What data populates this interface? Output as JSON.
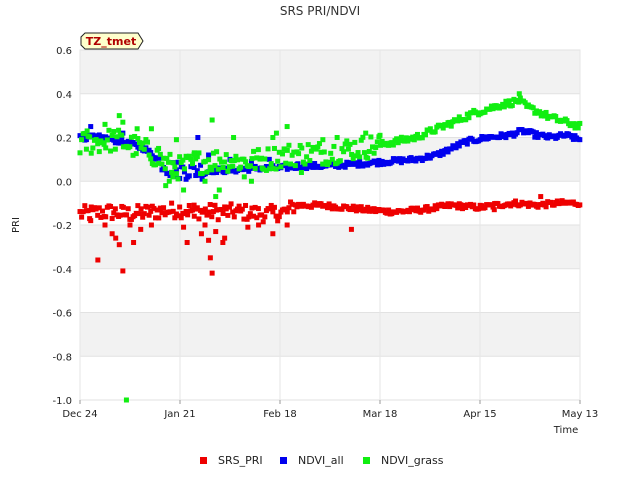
{
  "chart_data": {
    "type": "scatter",
    "title": "SRS PRI/NDVI",
    "xlabel": "Time",
    "ylabel": "PRI",
    "badge": "TZ_tmet",
    "x_start_day": 0,
    "x_end_day": 140,
    "xticks": [
      {
        "label": "Dec 24",
        "day": 0
      },
      {
        "label": "Jan 21",
        "day": 28
      },
      {
        "label": "Feb 18",
        "day": 56
      },
      {
        "label": "Mar 18",
        "day": 84
      },
      {
        "label": "Apr 15",
        "day": 112
      },
      {
        "label": "May 13",
        "day": 140
      }
    ],
    "ylim": [
      -1.0,
      0.6
    ],
    "yticks": [
      {
        "label": "0.6",
        "value": 0.6
      },
      {
        "label": "0.4",
        "value": 0.4
      },
      {
        "label": "0.2",
        "value": 0.2
      },
      {
        "label": "0.0",
        "value": 0.0
      },
      {
        "label": "-0.2",
        "value": -0.2
      },
      {
        "label": "-0.4",
        "value": -0.4
      },
      {
        "label": "-0.6",
        "value": -0.6
      },
      {
        "label": "-0.8",
        "value": -0.8
      },
      {
        "label": "-1.0",
        "value": -1.0
      }
    ],
    "series": [
      {
        "name": "SRS_PRI",
        "color": "#ee0000",
        "trend": [
          [
            0,
            -0.15
          ],
          [
            8,
            -0.14
          ],
          [
            14,
            -0.15
          ],
          [
            20,
            -0.14
          ],
          [
            28,
            -0.13
          ],
          [
            36,
            -0.14
          ],
          [
            44,
            -0.14
          ],
          [
            52,
            -0.15
          ],
          [
            58,
            -0.14
          ],
          [
            60,
            -0.11
          ],
          [
            68,
            -0.11
          ],
          [
            74,
            -0.12
          ],
          [
            80,
            -0.13
          ],
          [
            88,
            -0.14
          ],
          [
            96,
            -0.13
          ],
          [
            104,
            -0.11
          ],
          [
            112,
            -0.12
          ],
          [
            116,
            -0.11
          ],
          [
            122,
            -0.1
          ],
          [
            128,
            -0.11
          ],
          [
            134,
            -0.1
          ],
          [
            140,
            -0.1
          ]
        ],
        "jitter": 0.012,
        "scatter_start": 0,
        "scatter_end": 60,
        "scatter_extra": 0.025,
        "outliers": [
          [
            3,
            -0.18
          ],
          [
            5,
            -0.36
          ],
          [
            7,
            -0.2
          ],
          [
            9,
            -0.24
          ],
          [
            10,
            -0.26
          ],
          [
            11,
            -0.29
          ],
          [
            12,
            -0.41
          ],
          [
            14,
            -0.2
          ],
          [
            15,
            -0.28
          ],
          [
            17,
            -0.22
          ],
          [
            20,
            -0.2
          ],
          [
            29,
            -0.21
          ],
          [
            30,
            -0.28
          ],
          [
            32,
            -0.16
          ],
          [
            34,
            -0.24
          ],
          [
            35,
            -0.2
          ],
          [
            36,
            -0.27
          ],
          [
            36.5,
            -0.35
          ],
          [
            37,
            -0.42
          ],
          [
            38,
            -0.23
          ],
          [
            40,
            -0.28
          ],
          [
            40.5,
            -0.26
          ],
          [
            47,
            -0.21
          ],
          [
            50,
            -0.2
          ],
          [
            54,
            -0.24
          ],
          [
            58,
            -0.2
          ],
          [
            76,
            -0.22
          ],
          [
            116,
            -0.13
          ],
          [
            129,
            -0.07
          ]
        ]
      },
      {
        "name": "NDVI_all",
        "color": "#0000ee",
        "trend": [
          [
            0,
            0.2
          ],
          [
            6,
            0.2
          ],
          [
            12,
            0.18
          ],
          [
            18,
            0.15
          ],
          [
            22,
            0.1
          ],
          [
            25,
            0.06
          ],
          [
            28,
            0.05
          ],
          [
            34,
            0.05
          ],
          [
            42,
            0.05
          ],
          [
            50,
            0.06
          ],
          [
            56,
            0.06
          ],
          [
            62,
            0.07
          ],
          [
            70,
            0.07
          ],
          [
            78,
            0.08
          ],
          [
            86,
            0.09
          ],
          [
            94,
            0.1
          ],
          [
            100,
            0.12
          ],
          [
            104,
            0.15
          ],
          [
            108,
            0.18
          ],
          [
            114,
            0.2
          ],
          [
            120,
            0.21
          ],
          [
            124,
            0.23
          ],
          [
            128,
            0.21
          ],
          [
            132,
            0.2
          ],
          [
            136,
            0.21
          ],
          [
            140,
            0.19
          ]
        ],
        "jitter": 0.012,
        "scatter_start": 22,
        "scatter_end": 36,
        "scatter_extra": 0.03,
        "outliers": [
          [
            3,
            0.25
          ],
          [
            12,
            0.22
          ],
          [
            14,
            0.18
          ],
          [
            33,
            0.2
          ],
          [
            36,
            0.12
          ],
          [
            42,
            0.1
          ],
          [
            48,
            0.09
          ],
          [
            53,
            0.1
          ],
          [
            61,
            0.08
          ]
        ]
      },
      {
        "name": "NDVI_grass",
        "color": "#11ee11",
        "trend": [
          [
            0,
            0.17
          ],
          [
            5,
            0.18
          ],
          [
            10,
            0.19
          ],
          [
            15,
            0.16
          ],
          [
            20,
            0.13
          ],
          [
            24,
            0.08
          ],
          [
            28,
            0.06
          ],
          [
            34,
            0.09
          ],
          [
            40,
            0.1
          ],
          [
            46,
            0.09
          ],
          [
            52,
            0.1
          ],
          [
            58,
            0.12
          ],
          [
            64,
            0.13
          ],
          [
            70,
            0.13
          ],
          [
            76,
            0.15
          ],
          [
            82,
            0.16
          ],
          [
            88,
            0.18
          ],
          [
            94,
            0.2
          ],
          [
            100,
            0.24
          ],
          [
            106,
            0.28
          ],
          [
            110,
            0.31
          ],
          [
            114,
            0.33
          ],
          [
            118,
            0.35
          ],
          [
            121,
            0.36
          ],
          [
            123,
            0.37
          ],
          [
            125,
            0.34
          ],
          [
            128,
            0.32
          ],
          [
            132,
            0.29
          ],
          [
            136,
            0.27
          ],
          [
            140,
            0.25
          ]
        ],
        "jitter": 0.015,
        "scatter_start": 0,
        "scatter_end": 84,
        "scatter_extra": 0.04,
        "outliers": [
          [
            2,
            0.23
          ],
          [
            7,
            0.26
          ],
          [
            11,
            0.3
          ],
          [
            12,
            0.27
          ],
          [
            13,
            -1.0
          ],
          [
            16,
            0.24
          ],
          [
            20,
            0.24
          ],
          [
            22,
            0.15
          ],
          [
            24,
            -0.02
          ],
          [
            25,
            0.0
          ],
          [
            26,
            0.02
          ],
          [
            27,
            0.19
          ],
          [
            29,
            -0.04
          ],
          [
            32,
            0.13
          ],
          [
            35,
            0.0
          ],
          [
            37,
            0.28
          ],
          [
            38,
            -0.07
          ],
          [
            39,
            -0.04
          ],
          [
            43,
            0.2
          ],
          [
            46,
            0.02
          ],
          [
            48,
            0.0
          ],
          [
            51,
            0.06
          ],
          [
            54,
            0.2
          ],
          [
            55,
            0.22
          ],
          [
            58,
            0.25
          ],
          [
            62,
            0.04
          ],
          [
            68,
            0.19
          ],
          [
            72,
            0.2
          ],
          [
            80,
            0.22
          ],
          [
            84,
            0.21
          ],
          [
            123,
            0.4
          ]
        ]
      }
    ]
  }
}
